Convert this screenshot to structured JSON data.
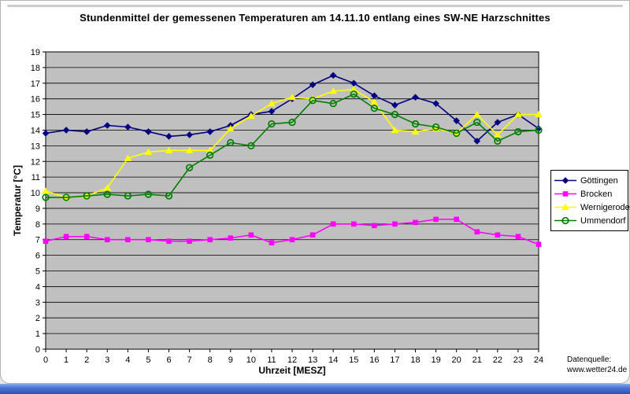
{
  "page": {
    "source_label_line1": "Datenquelle:",
    "source_label_line2": "www.wetter24.de"
  },
  "chart_data": {
    "type": "line",
    "title": "Stundenmittel der gemessenen Temperaturen am 14.11.10 entlang eines SW-NE Harzschnittes",
    "xlabel": "Uhrzeit [MESZ]",
    "ylabel": "Temperatur [°C]",
    "x": [
      0,
      1,
      2,
      3,
      4,
      5,
      6,
      7,
      8,
      9,
      10,
      11,
      12,
      13,
      14,
      15,
      16,
      17,
      18,
      19,
      20,
      21,
      22,
      23,
      24
    ],
    "xlim": [
      0,
      24
    ],
    "ylim": [
      0,
      19
    ],
    "x_tick_step": 1,
    "y_tick_step": 1,
    "grid": "horizontal-black",
    "plot_bg_color": "#c0c0c0",
    "legend_position": "right",
    "series": [
      {
        "id": "goettingen",
        "name": "Göttingen",
        "color": "#000080",
        "marker": "diamond",
        "values": [
          13.8,
          14.0,
          13.9,
          14.3,
          14.2,
          13.9,
          13.6,
          13.7,
          13.9,
          14.3,
          15.0,
          15.2,
          16.0,
          16.9,
          17.5,
          17.0,
          16.2,
          15.6,
          16.1,
          15.7,
          14.6,
          13.3,
          14.5,
          15.0,
          14.1
        ]
      },
      {
        "id": "brocken",
        "name": "Brocken",
        "color": "#ff00ff",
        "marker": "square",
        "values": [
          6.9,
          7.2,
          7.2,
          7.0,
          7.0,
          7.0,
          6.9,
          6.9,
          7.0,
          7.1,
          7.3,
          6.8,
          7.0,
          7.3,
          8.0,
          8.0,
          7.9,
          8.0,
          8.1,
          8.3,
          8.3,
          7.5,
          7.3,
          7.2,
          6.7
        ]
      },
      {
        "id": "wernigerode",
        "name": "Wernigerode",
        "color": "#ffff00",
        "marker": "triangle",
        "values": [
          10.1,
          9.7,
          9.8,
          10.3,
          12.2,
          12.6,
          12.7,
          12.7,
          12.7,
          14.1,
          14.9,
          15.7,
          16.1,
          16.0,
          16.5,
          16.6,
          15.8,
          14.0,
          13.9,
          14.1,
          13.8,
          15.0,
          13.7,
          15.0,
          15.0
        ]
      },
      {
        "id": "ummendorf",
        "name": "Ummendorf",
        "color": "#008000",
        "marker": "circle-open",
        "values": [
          9.7,
          9.7,
          9.8,
          9.9,
          9.8,
          9.9,
          9.8,
          11.6,
          12.4,
          13.2,
          13.0,
          14.4,
          14.5,
          15.9,
          15.7,
          16.3,
          15.4,
          15.0,
          14.4,
          14.2,
          13.8,
          14.5,
          13.3,
          13.9,
          14.0
        ]
      }
    ]
  }
}
